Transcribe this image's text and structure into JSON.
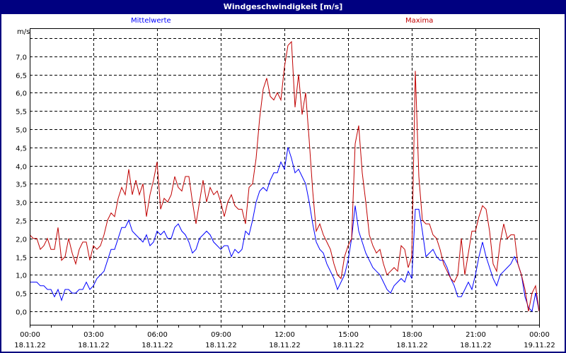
{
  "window": {
    "title": "Windgeschwindigkeit [m/s]"
  },
  "chart_data": {
    "type": "line",
    "title": "Windgeschwindigkeit [m/s]",
    "ylabel": "m/s",
    "xlabel": "",
    "ylim": [
      -0.37,
      7.77
    ],
    "y_ticks": [
      0,
      0.5,
      1,
      1.5,
      2,
      2.5,
      3,
      3.5,
      4,
      4.5,
      5,
      5.5,
      6,
      6.5,
      7,
      7.5
    ],
    "y_tick_labels": [
      "0,0",
      "0,5",
      "1,0",
      "1,5",
      "2,0",
      "2,5",
      "3,0",
      "3,5",
      "4,0",
      "4,5",
      "5,0",
      "5,5",
      "6,0",
      "6,5",
      "7,0",
      ""
    ],
    "x_range_hours": [
      0,
      24
    ],
    "x_step_minutes": 10,
    "x_ticks": [
      {
        "hour": 0,
        "time": "00:00",
        "date": "18.11.22"
      },
      {
        "hour": 3,
        "time": "03:00",
        "date": "18.11.22"
      },
      {
        "hour": 6,
        "time": "06:00",
        "date": "18.11.22"
      },
      {
        "hour": 9,
        "time": "09:00",
        "date": "18.11.22"
      },
      {
        "hour": 12,
        "time": "12:00",
        "date": "18.11.22"
      },
      {
        "hour": 15,
        "time": "15:00",
        "date": "18.11.22"
      },
      {
        "hour": 18,
        "time": "18:00",
        "date": "18.11.22"
      },
      {
        "hour": 21,
        "time": "21:00",
        "date": "18.11.22"
      },
      {
        "hour": 24,
        "time": "00:00",
        "date": "19.11.22"
      }
    ],
    "grid": true,
    "legend_placement": "top",
    "series": [
      {
        "name": "Mittelwerte",
        "color": "#0000ff",
        "values": [
          0.8,
          0.8,
          0.8,
          0.7,
          0.7,
          0.6,
          0.6,
          0.4,
          0.6,
          0.3,
          0.6,
          0.6,
          0.5,
          0.5,
          0.6,
          0.6,
          0.8,
          0.6,
          0.7,
          0.9,
          1.0,
          1.1,
          1.4,
          1.7,
          1.7,
          2.0,
          2.3,
          2.3,
          2.5,
          2.2,
          2.1,
          2.0,
          1.9,
          2.1,
          1.8,
          1.9,
          2.2,
          2.1,
          2.2,
          2.0,
          2.0,
          2.3,
          2.4,
          2.2,
          2.1,
          1.9,
          1.6,
          1.7,
          2.0,
          2.1,
          2.2,
          2.1,
          1.9,
          1.8,
          1.7,
          1.8,
          1.8,
          1.5,
          1.7,
          1.6,
          1.7,
          2.2,
          2.1,
          2.5,
          3.0,
          3.3,
          3.4,
          3.3,
          3.6,
          3.8,
          3.8,
          4.1,
          3.9,
          4.5,
          4.2,
          3.8,
          3.9,
          3.7,
          3.5,
          3.0,
          2.4,
          1.9,
          1.7,
          1.6,
          1.3,
          1.1,
          0.9,
          0.6,
          0.8,
          1.0,
          1.4,
          2.0,
          2.9,
          2.2,
          1.9,
          1.6,
          1.4,
          1.2,
          1.1,
          1.0,
          0.8,
          0.6,
          0.5,
          0.7,
          0.8,
          0.9,
          0.8,
          1.1,
          0.9,
          2.8,
          2.8,
          2.2,
          1.5,
          1.6,
          1.7,
          1.5,
          1.4,
          1.4,
          1.2,
          0.9,
          0.7,
          0.4,
          0.4,
          0.6,
          0.8,
          0.6,
          1.0,
          1.5,
          1.9,
          1.5,
          1.2,
          0.9,
          0.7,
          1.0,
          1.1,
          1.2,
          1.3,
          1.5,
          1.3,
          1.0,
          0.4,
          0.1,
          0.0,
          0.5,
          0.0
        ]
      },
      {
        "name": "Maxima",
        "color": "#c00000",
        "values": [
          2.1,
          2.0,
          2.0,
          1.7,
          1.8,
          2.0,
          1.7,
          1.7,
          2.3,
          1.4,
          1.5,
          2.0,
          1.6,
          1.3,
          1.7,
          1.9,
          1.9,
          1.4,
          1.8,
          1.7,
          1.8,
          2.1,
          2.5,
          2.7,
          2.6,
          3.1,
          3.4,
          3.2,
          3.9,
          3.2,
          3.6,
          3.2,
          3.5,
          2.6,
          3.2,
          3.6,
          4.1,
          2.8,
          3.1,
          3.0,
          3.2,
          3.7,
          3.4,
          3.3,
          3.7,
          3.7,
          3.0,
          2.4,
          3.0,
          3.6,
          3.0,
          3.4,
          3.2,
          3.3,
          3.0,
          2.6,
          3.0,
          3.2,
          2.9,
          2.8,
          2.8,
          2.4,
          3.4,
          3.5,
          4.2,
          5.3,
          6.1,
          6.4,
          5.9,
          5.8,
          6.0,
          5.8,
          6.7,
          7.3,
          7.4,
          5.6,
          6.5,
          5.4,
          6.0,
          4.7,
          3.3,
          2.2,
          2.4,
          2.1,
          1.9,
          1.7,
          1.3,
          1.0,
          0.9,
          1.5,
          1.8,
          2.0,
          4.6,
          5.1,
          3.8,
          3.0,
          2.1,
          1.8,
          1.6,
          1.7,
          1.3,
          1.0,
          1.1,
          1.2,
          1.1,
          1.8,
          1.7,
          1.2,
          1.5,
          6.6,
          3.7,
          2.5,
          2.4,
          2.4,
          2.1,
          2.0,
          1.7,
          1.3,
          1.1,
          0.9,
          0.8,
          1.0,
          2.0,
          1.0,
          1.6,
          2.2,
          2.2,
          2.6,
          2.9,
          2.8,
          2.2,
          1.3,
          1.1,
          1.9,
          2.4,
          2.0,
          2.1,
          2.1,
          1.3,
          1.0,
          0.6,
          0.0,
          0.5,
          0.7,
          0.0
        ]
      }
    ]
  }
}
